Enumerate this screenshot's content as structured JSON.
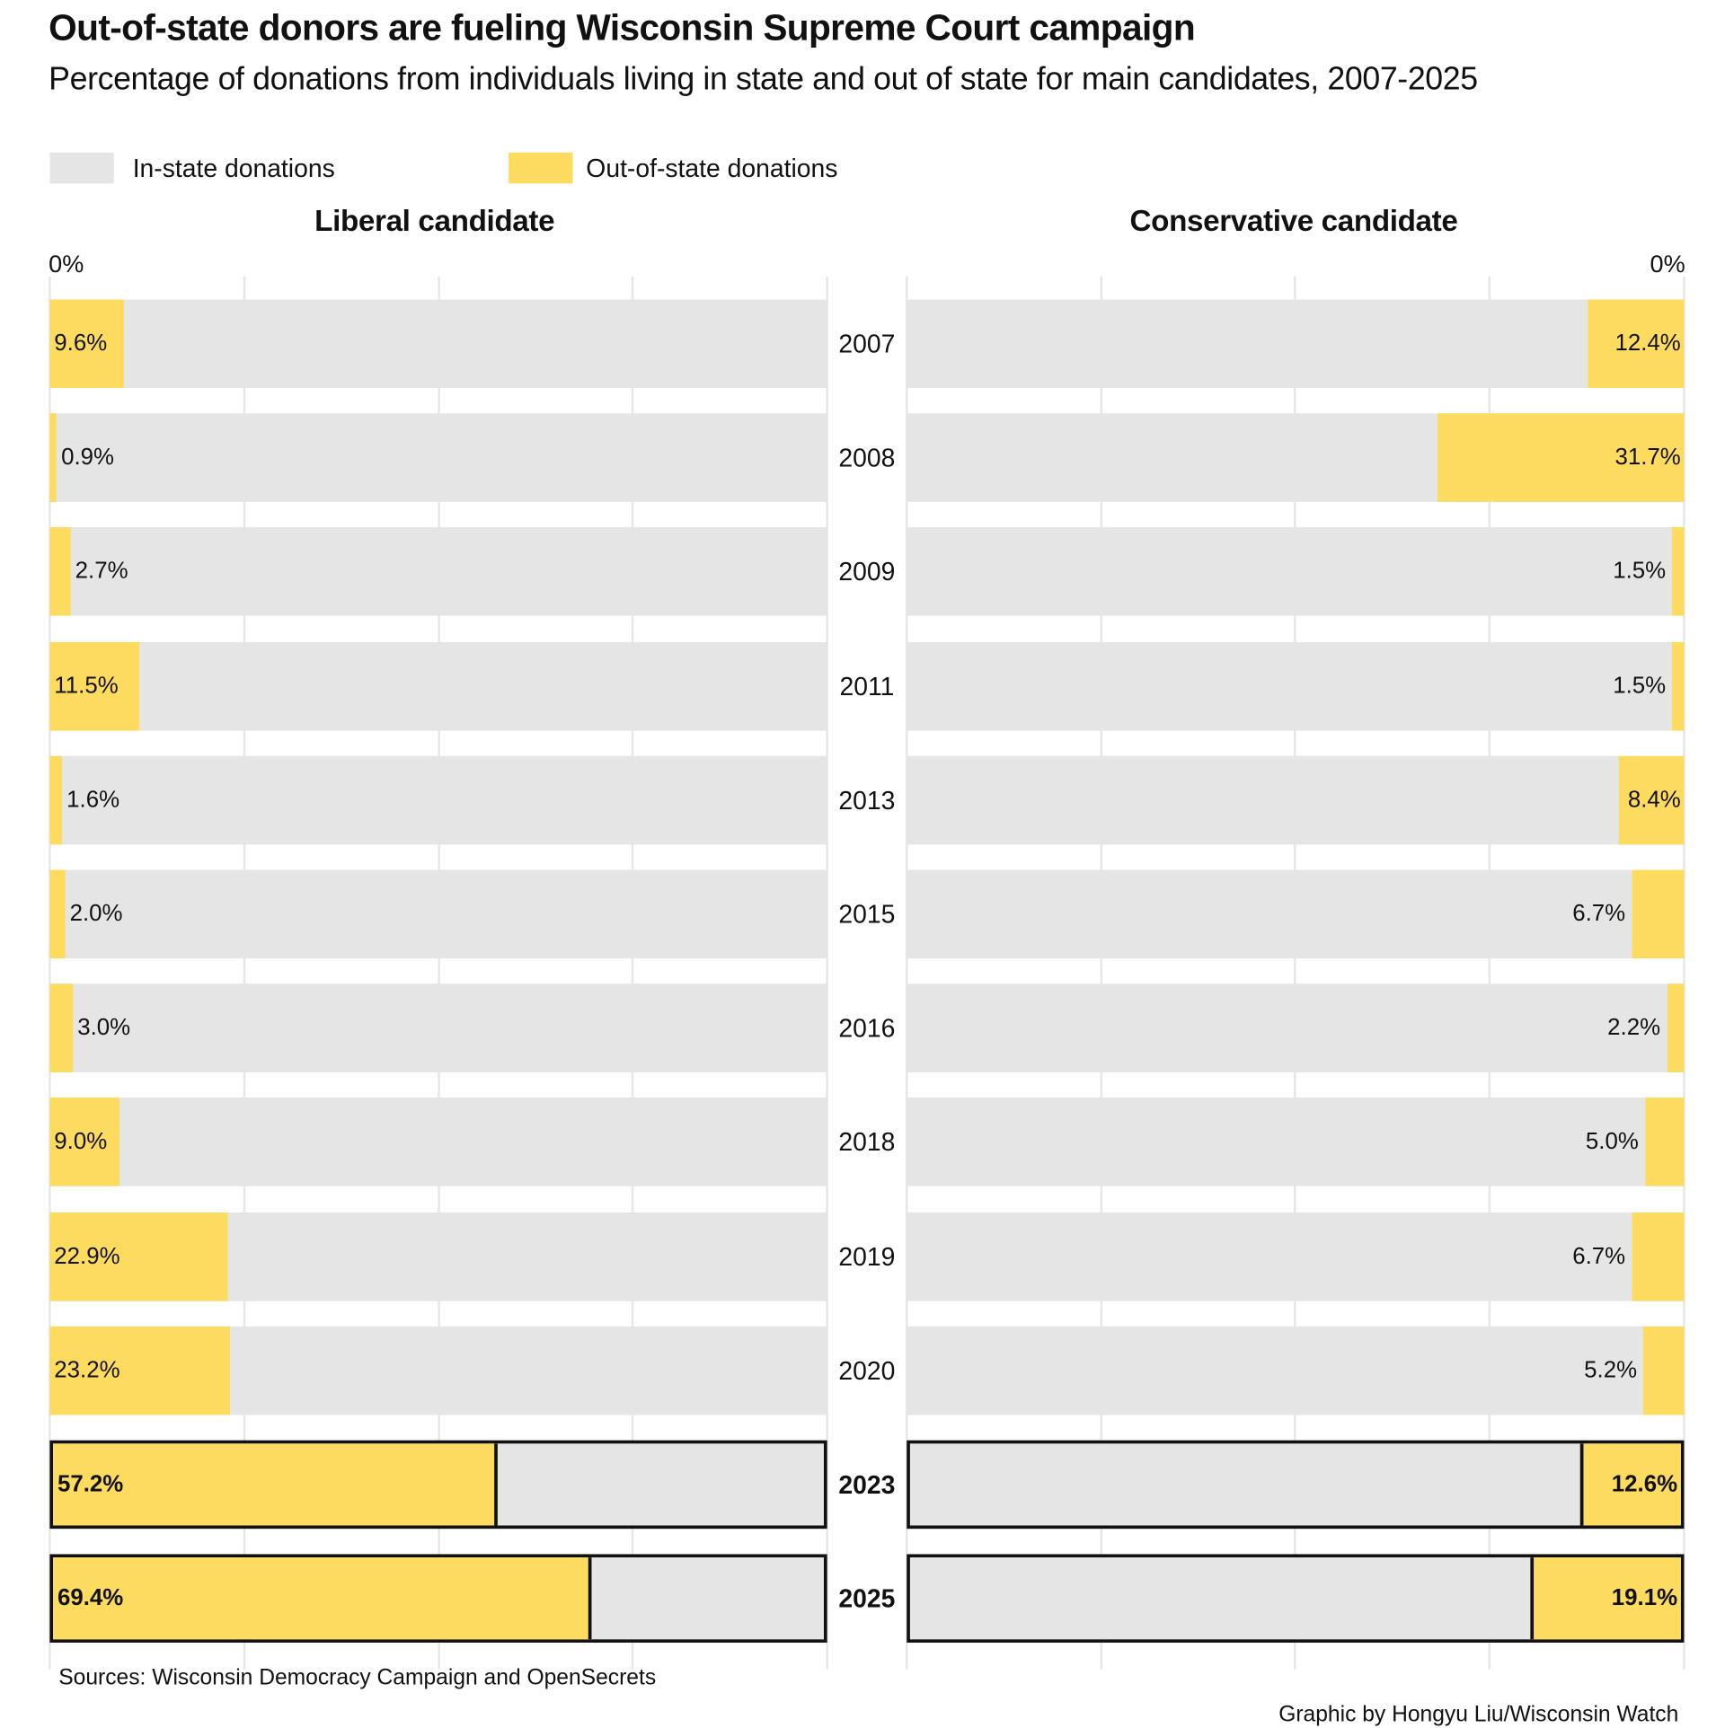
{
  "title": "Out-of-state donors are fueling Wisconsin Supreme Court campaign",
  "subtitle": "Percentage of donations from individuals living in state and out of state for main candidates, 2007-2025",
  "legend": [
    {
      "label": "In-state donations",
      "color": "#E5E5E5"
    },
    {
      "label": "Out-of-state donations",
      "color": "#FDDB5E"
    }
  ],
  "sources": "Sources: Wisconsin Democracy Campaign and OpenSecrets",
  "credit": "Graphic by Hongyu Liu/Wisconsin Watch",
  "chart_data": {
    "type": "bar",
    "stacked": true,
    "orientation": "horizontal",
    "xlim": [
      0,
      100
    ],
    "tick_label": "0%",
    "categories": [
      "2007",
      "2008",
      "2009",
      "2011",
      "2013",
      "2015",
      "2016",
      "2018",
      "2019",
      "2020",
      "2023",
      "2025"
    ],
    "highlighted": [
      "2023",
      "2025"
    ],
    "panels": [
      {
        "title": "Liberal candidate",
        "direction": "left-to-right",
        "out_of_state": [
          9.6,
          0.9,
          2.7,
          11.5,
          1.6,
          2.0,
          3.0,
          9.0,
          22.9,
          23.2,
          57.2,
          69.4
        ]
      },
      {
        "title": "Conservative candidate",
        "direction": "right-to-left",
        "out_of_state": [
          12.4,
          31.7,
          1.5,
          1.5,
          8.4,
          6.7,
          2.2,
          5.0,
          6.7,
          5.2,
          12.6,
          19.1
        ]
      }
    ]
  }
}
